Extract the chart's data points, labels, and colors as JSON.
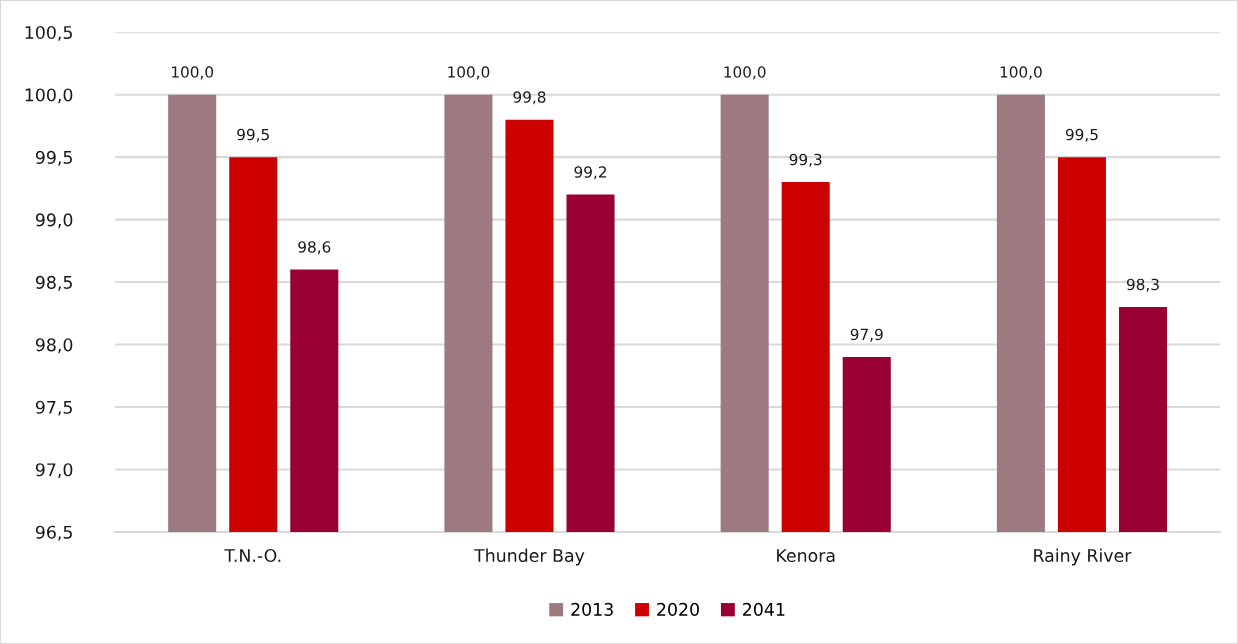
{
  "chart_data": {
    "type": "bar",
    "categories": [
      "T.N.-O.",
      "Thunder Bay",
      "Kenora",
      "Rainy River"
    ],
    "series": [
      {
        "name": "2013",
        "color": "#9c7a80",
        "values": [
          100.0,
          100.0,
          100.0,
          100.0
        ],
        "value_labels": [
          "100,0",
          "100,0",
          "100,0",
          "100,0"
        ]
      },
      {
        "name": "2020",
        "color": "#cc0000",
        "values": [
          99.5,
          99.8,
          99.3,
          99.5
        ],
        "value_labels": [
          "99,5",
          "99,8",
          "99,3",
          "99,5"
        ]
      },
      {
        "name": "2041",
        "color": "#990033",
        "values": [
          98.6,
          99.2,
          97.9,
          98.3
        ],
        "value_labels": [
          "98,6",
          "99,2",
          "97,9",
          "98,3"
        ]
      }
    ],
    "ylim": [
      96.5,
      100.5
    ],
    "yticks": [
      {
        "value": 96.5,
        "label": "96,5"
      },
      {
        "value": 97.0,
        "label": "97,0"
      },
      {
        "value": 97.5,
        "label": "97,5"
      },
      {
        "value": 98.0,
        "label": "98,0"
      },
      {
        "value": 98.5,
        "label": "98,5"
      },
      {
        "value": 99.0,
        "label": "99,0"
      },
      {
        "value": 99.5,
        "label": "99,5"
      },
      {
        "value": 100.0,
        "label": "100,0"
      },
      {
        "value": 100.5,
        "label": "100,5"
      }
    ],
    "grid": "y",
    "legend": "bottom"
  }
}
